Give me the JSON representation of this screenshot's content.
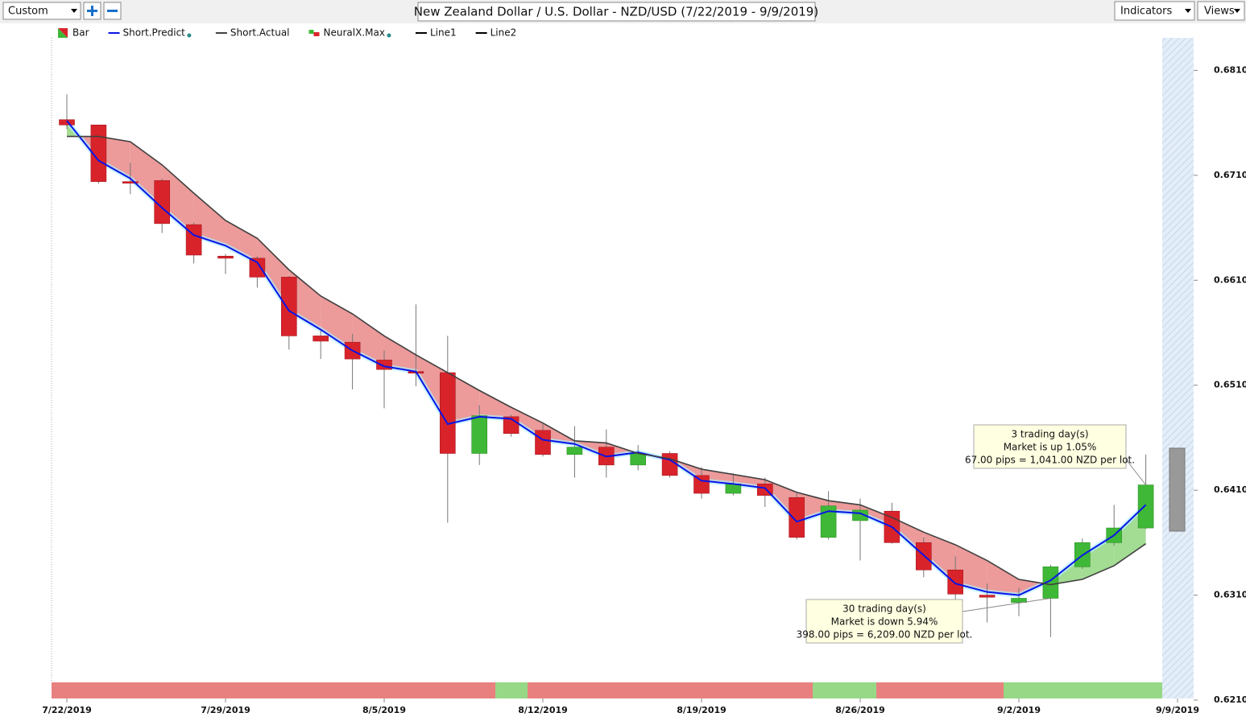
{
  "toolbar": {
    "preset": "Custom",
    "indicators": "Indicators",
    "views": "Views"
  },
  "chart_data": {
    "type": "candlestick",
    "title": "New Zealand Dollar / U.S. Dollar - NZD/USD (7/22/2019 - 9/9/2019)",
    "categories": [
      "7/22/2019",
      null,
      null,
      null,
      null,
      "7/29/2019",
      null,
      null,
      null,
      null,
      "8/5/2019",
      null,
      null,
      null,
      null,
      "8/12/2019",
      null,
      null,
      null,
      null,
      "8/19/2019",
      null,
      null,
      null,
      null,
      "8/26/2019",
      null,
      null,
      null,
      null,
      "9/2/2019",
      null,
      null,
      null,
      null,
      "9/9/2019"
    ],
    "series": [
      {
        "name": "Bar",
        "type": "candlestick",
        "up_color": "#3fb837",
        "down_color": "#d9232b",
        "open": [
          0.6763,
          0.6758,
          0.6704,
          0.6705,
          0.6663,
          0.6633,
          0.6631,
          0.6613,
          0.6557,
          0.6551,
          0.6534,
          0.6523,
          0.6522,
          0.6445,
          0.648,
          0.6467,
          0.6444,
          0.6451,
          0.6434,
          0.6445,
          0.6424,
          0.6407,
          0.6416,
          0.6403,
          0.6365,
          0.6381,
          0.639,
          0.636,
          0.6334,
          0.631,
          0.6303,
          0.6307,
          0.6337,
          0.636,
          0.6374,
          null
        ],
        "high": [
          0.6787,
          0.6758,
          0.6722,
          0.6707,
          0.6665,
          0.6635,
          0.6633,
          0.6614,
          0.6563,
          0.6559,
          0.6543,
          0.6587,
          0.6557,
          0.6491,
          0.6482,
          0.6473,
          0.6471,
          0.6468,
          0.6453,
          0.6447,
          0.6432,
          0.6426,
          0.6422,
          0.6408,
          0.6409,
          0.6402,
          0.6398,
          0.6365,
          0.6347,
          0.6321,
          0.6317,
          0.6339,
          0.6364,
          0.6396,
          0.6444,
          null
        ],
        "low": [
          0.6754,
          0.6702,
          0.6692,
          0.6655,
          0.6626,
          0.6616,
          0.6603,
          0.6544,
          0.6535,
          0.6506,
          0.6488,
          0.6509,
          0.6379,
          0.6434,
          0.6461,
          0.6442,
          0.6422,
          0.6422,
          0.6429,
          0.6422,
          0.6402,
          0.6405,
          0.6394,
          0.6363,
          0.6363,
          0.6343,
          0.6359,
          0.6327,
          0.6306,
          0.6284,
          0.629,
          0.627,
          0.6335,
          0.6357,
          0.6373,
          null
        ],
        "close": [
          0.6758,
          0.6704,
          0.6703,
          0.6664,
          0.6634,
          0.6631,
          0.6613,
          0.6557,
          0.6552,
          0.6535,
          0.6525,
          0.6522,
          0.6445,
          0.6481,
          0.6464,
          0.6444,
          0.6451,
          0.6434,
          0.6445,
          0.6424,
          0.6407,
          0.6416,
          0.6405,
          0.6365,
          0.6395,
          0.6391,
          0.636,
          0.6334,
          0.6311,
          0.6308,
          0.6307,
          0.6337,
          0.636,
          0.6374,
          0.6415,
          null
        ]
      },
      {
        "name": "Short.Predict",
        "type": "line",
        "color": "#0a14e6",
        "dot_color": "#2a8a8a",
        "values": [
          0.6762,
          0.6724,
          0.6707,
          0.6679,
          0.6653,
          0.6643,
          0.6627,
          0.6581,
          0.6563,
          0.6543,
          0.6528,
          0.6523,
          0.6473,
          0.648,
          0.6478,
          0.6458,
          0.6454,
          0.6442,
          0.6446,
          0.6439,
          0.6419,
          0.6416,
          0.6412,
          0.638,
          0.639,
          0.6388,
          0.6375,
          0.6348,
          0.6321,
          0.6313,
          0.631,
          0.6324,
          0.6348,
          0.6367,
          0.6396,
          null
        ]
      },
      {
        "name": "Short.Actual",
        "type": "line",
        "color": "#404040",
        "values": [
          0.6747,
          0.6747,
          0.6742,
          0.672,
          0.6693,
          0.6667,
          0.665,
          0.662,
          0.6595,
          0.6578,
          0.6557,
          0.6539,
          0.6522,
          0.6505,
          0.6489,
          0.6474,
          0.6457,
          0.6455,
          0.6445,
          0.644,
          0.643,
          0.6425,
          0.642,
          0.6408,
          0.64,
          0.6396,
          0.6384,
          0.637,
          0.6358,
          0.6343,
          0.6325,
          0.632,
          0.6325,
          0.6338,
          0.6359,
          null
        ]
      },
      {
        "name": "NeuralX.Max",
        "type": "signal",
        "up_color": "#3fb837",
        "down_color": "#d9232b",
        "dot_color": "#2a8a8a"
      },
      {
        "name": "Line1",
        "type": "line",
        "color": "#000000"
      },
      {
        "name": "Line2",
        "type": "line",
        "color": "#000000"
      }
    ],
    "fill_up_color": "#a3dc93",
    "fill_down_color": "#ec9a9a",
    "forecast_range": [
      0.645,
      0.6371
    ],
    "ylim": [
      0.621,
      0.6841
    ],
    "yticks": [
      {
        "value": 0.621,
        "label": "0.6210"
      },
      {
        "value": 0.631,
        "label": "0.6310"
      },
      {
        "value": 0.641,
        "label": "0.6410"
      },
      {
        "value": 0.651,
        "label": "0.6510"
      },
      {
        "value": 0.661,
        "label": "0.6610"
      },
      {
        "value": 0.671,
        "label": "0.6710"
      },
      {
        "value": 0.681,
        "label": "0.6810"
      }
    ],
    "annotations": [
      {
        "index": 34,
        "value": 0.6415,
        "lines": [
          "3 trading day(s)",
          "Market is up 1.05%",
          "67.00 pips = 1,041.00 NZD per lot."
        ]
      },
      {
        "index": 31,
        "value": 0.6307,
        "lines": [
          "30 trading day(s)",
          "Market is down 5.94%",
          "398.00 pips = 6,209.00 NZD per lot."
        ]
      }
    ]
  }
}
